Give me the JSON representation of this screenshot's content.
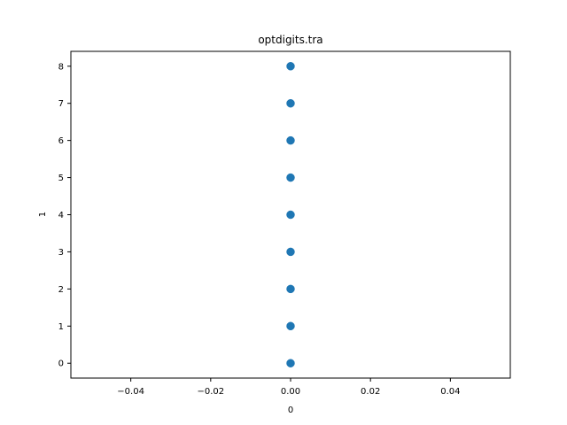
{
  "chart_data": {
    "type": "scatter",
    "title": "optdigits.tra",
    "xlabel": "0",
    "ylabel": "1",
    "xlim": [
      -0.055,
      0.055
    ],
    "ylim": [
      -0.4,
      8.4
    ],
    "xticks": [
      -0.04,
      -0.02,
      0.0,
      0.02,
      0.04
    ],
    "xtick_labels": [
      "−0.04",
      "−0.02",
      "0.00",
      "0.02",
      "0.04"
    ],
    "yticks": [
      0,
      1,
      2,
      3,
      4,
      5,
      6,
      7,
      8
    ],
    "ytick_labels": [
      "0",
      "1",
      "2",
      "3",
      "4",
      "5",
      "6",
      "7",
      "8"
    ],
    "grid": false,
    "marker_color": "#1f77b4",
    "points": [
      {
        "x": 0,
        "y": 0
      },
      {
        "x": 0,
        "y": 1
      },
      {
        "x": 0,
        "y": 2
      },
      {
        "x": 0,
        "y": 3
      },
      {
        "x": 0,
        "y": 4
      },
      {
        "x": 0,
        "y": 5
      },
      {
        "x": 0,
        "y": 6
      },
      {
        "x": 0,
        "y": 7
      },
      {
        "x": 0,
        "y": 8
      }
    ]
  }
}
